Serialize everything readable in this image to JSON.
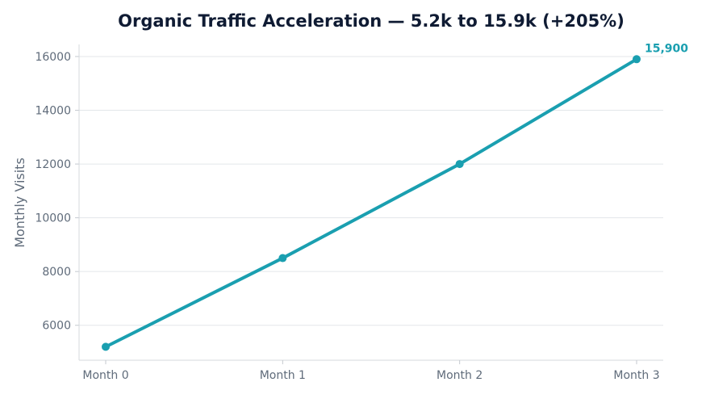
{
  "chart_data": {
    "type": "line",
    "title": "Organic Traffic Acceleration — 5.2k to 15.9k (+205%)",
    "xlabel": "",
    "ylabel": "Monthly Visits",
    "categories": [
      "Month 0",
      "Month 1",
      "Month 2",
      "Month 3"
    ],
    "series": [
      {
        "values": [
          5200,
          8500,
          12000,
          15900
        ]
      }
    ],
    "ylim": [
      4700,
      16450
    ],
    "yticks": [
      6000,
      8000,
      10000,
      12000,
      14000,
      16000
    ],
    "ytick_labels": [
      "6000",
      "8000",
      "10000",
      "12000",
      "14000",
      "16000"
    ],
    "annotations": [
      {
        "text": "15,900",
        "category": "Month 3",
        "value": 15900
      }
    ],
    "grid": "horizontal",
    "legend": "none",
    "colors": {
      "line": "#1a9fb0",
      "title": "#0f1b33",
      "text": "#5f6b7a",
      "grid": "#e3e6ea"
    }
  }
}
